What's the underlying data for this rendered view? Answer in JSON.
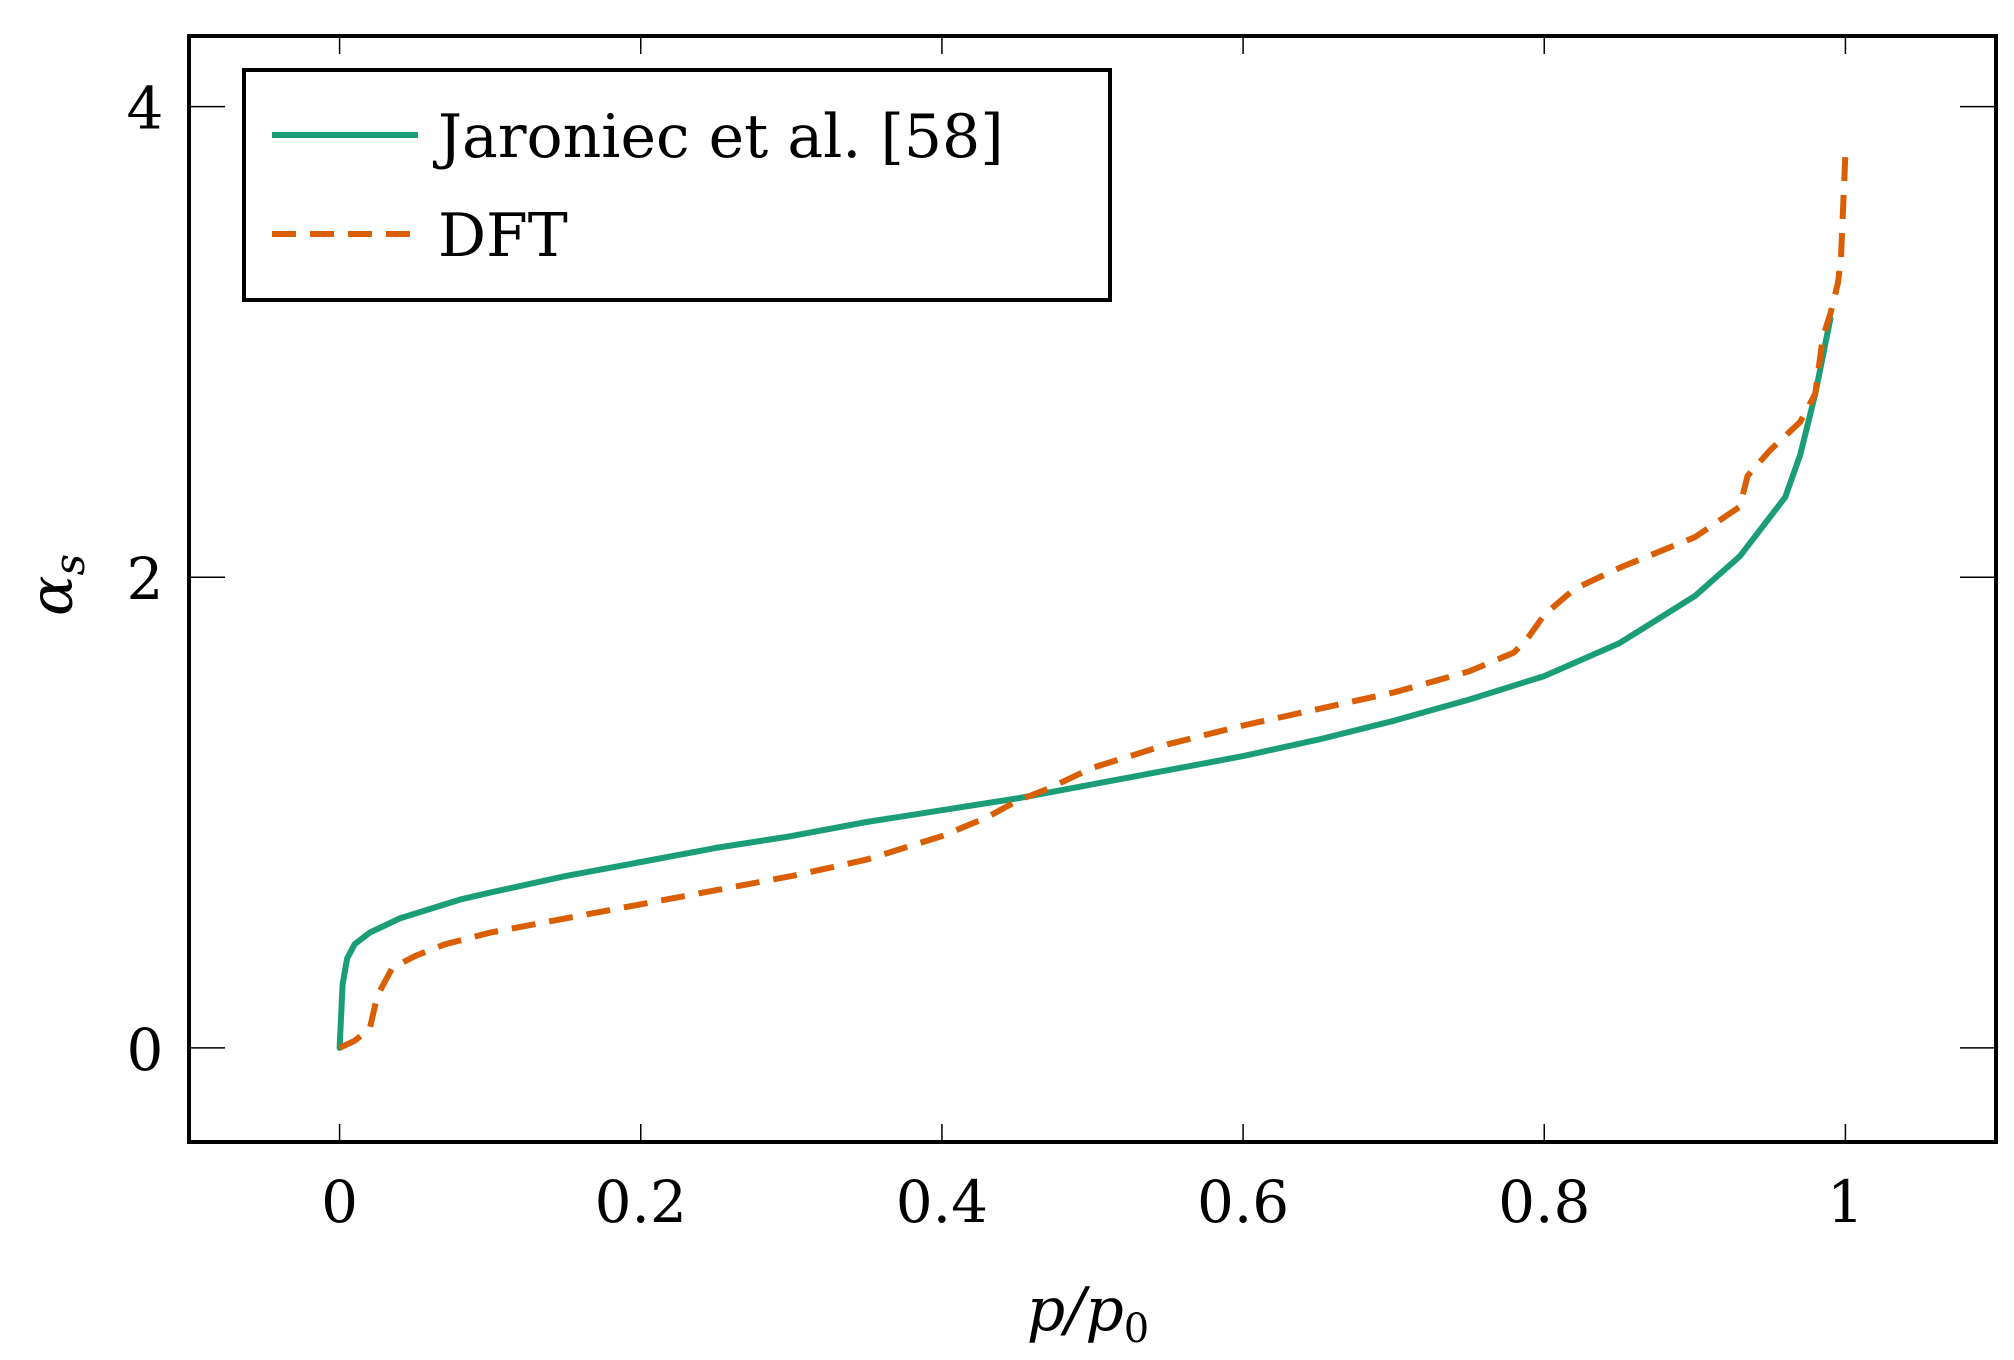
{
  "chart_data": {
    "type": "line",
    "title": "",
    "xlabel": "p/p",
    "xlabel_sub": "0",
    "ylabel": "α",
    "ylabel_sub": "s",
    "xlim": [
      -0.1,
      1.1
    ],
    "ylim": [
      -0.4,
      4.3
    ],
    "xticks": [
      0,
      0.2,
      0.4,
      0.6,
      0.8,
      1
    ],
    "xtick_labels": [
      "0",
      "0.2",
      "0.4",
      "0.6",
      "0.8",
      "1"
    ],
    "yticks": [
      0,
      2,
      4
    ],
    "ytick_labels": [
      "0",
      "2",
      "4"
    ],
    "grid": false,
    "legend_position": "top-left",
    "series": [
      {
        "name": "Jaroniec et al. [58]",
        "color": "#1b9e77",
        "style": "solid",
        "x": [
          0,
          0.002,
          0.005,
          0.01,
          0.02,
          0.04,
          0.06,
          0.08,
          0.1,
          0.15,
          0.2,
          0.25,
          0.3,
          0.35,
          0.4,
          0.45,
          0.5,
          0.55,
          0.6,
          0.65,
          0.7,
          0.75,
          0.8,
          0.85,
          0.9,
          0.93,
          0.96,
          0.97,
          0.98,
          0.99
        ],
        "y": [
          0,
          0.27,
          0.38,
          0.44,
          0.49,
          0.55,
          0.59,
          0.63,
          0.66,
          0.73,
          0.79,
          0.85,
          0.9,
          0.96,
          1.01,
          1.06,
          1.12,
          1.18,
          1.24,
          1.31,
          1.39,
          1.48,
          1.58,
          1.72,
          1.92,
          2.09,
          2.34,
          2.52,
          2.78,
          3.1
        ]
      },
      {
        "name": "DFT",
        "color": "#d95f02",
        "style": "dashed",
        "x": [
          0,
          0.01,
          0.02,
          0.025,
          0.035,
          0.05,
          0.07,
          0.1,
          0.15,
          0.2,
          0.25,
          0.3,
          0.35,
          0.4,
          0.43,
          0.45,
          0.47,
          0.5,
          0.55,
          0.6,
          0.65,
          0.7,
          0.75,
          0.78,
          0.79,
          0.8,
          0.82,
          0.85,
          0.9,
          0.93,
          0.935,
          0.95,
          0.97,
          0.98,
          0.985,
          0.99,
          0.995,
          0.997,
          1.0
        ],
        "y": [
          0,
          0.03,
          0.08,
          0.22,
          0.34,
          0.39,
          0.44,
          0.49,
          0.55,
          0.61,
          0.67,
          0.73,
          0.8,
          0.9,
          0.98,
          1.05,
          1.1,
          1.19,
          1.29,
          1.37,
          1.44,
          1.51,
          1.6,
          1.68,
          1.75,
          1.84,
          1.95,
          2.04,
          2.17,
          2.3,
          2.43,
          2.54,
          2.66,
          2.78,
          3.02,
          3.12,
          3.25,
          3.35,
          3.8
        ]
      }
    ]
  }
}
